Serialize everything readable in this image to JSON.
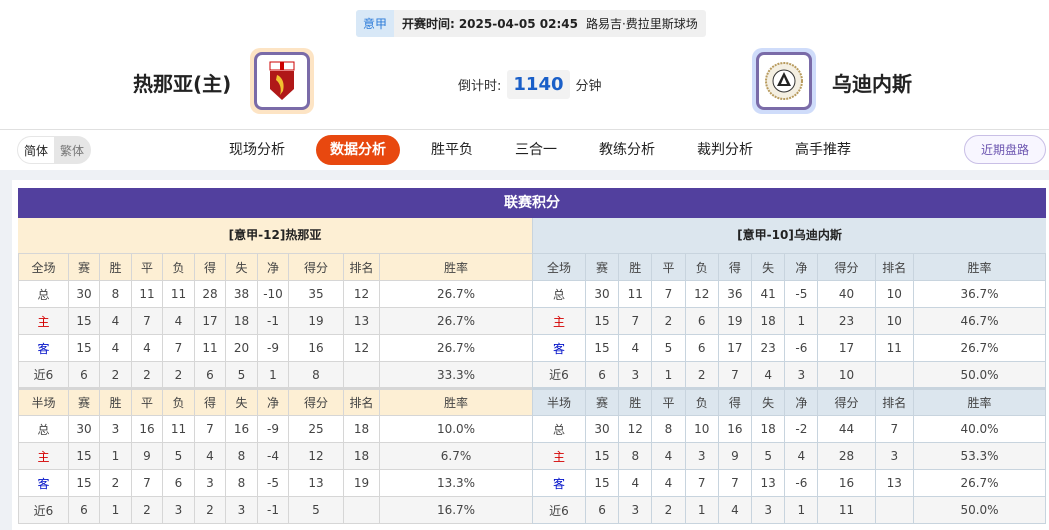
{
  "match": {
    "league": "意甲",
    "time_label": "开赛时间:",
    "time": "2025-04-05 02:45",
    "venue": "路易吉·费拉里斯球场"
  },
  "home": {
    "name": "热那亚(主)",
    "logo": "genoa-crest"
  },
  "away": {
    "name": "乌迪内斯",
    "logo": "udinese-crest"
  },
  "countdown": {
    "label": "倒计时:",
    "value": "1140",
    "unit": "分钟"
  },
  "nav": {
    "lang": [
      "简体",
      "繁体"
    ],
    "tabs": [
      "现场分析",
      "数据分析",
      "胜平负",
      "三合一",
      "教练分析",
      "裁判分析",
      "高手推荐"
    ],
    "active": "数据分析",
    "recent": "近期盘路"
  },
  "colors": {
    "accent": "#e8480f",
    "panel": "#52409e",
    "home_red": "#d40000",
    "away_blue": "#0010c8"
  },
  "standings": {
    "title": "联赛积分",
    "columns_full": [
      "全场",
      "赛",
      "胜",
      "平",
      "负",
      "得",
      "失",
      "净",
      "得分",
      "排名",
      "胜率"
    ],
    "columns_half": [
      "半场",
      "赛",
      "胜",
      "平",
      "负",
      "得",
      "失",
      "净",
      "得分",
      "排名",
      "胜率"
    ],
    "home": {
      "header": "[意甲-12]热那亚",
      "full": [
        [
          "总",
          "30",
          "8",
          "11",
          "11",
          "28",
          "38",
          "-10",
          "35",
          "12",
          "26.7%"
        ],
        [
          "主",
          "15",
          "4",
          "7",
          "4",
          "17",
          "18",
          "-1",
          "19",
          "13",
          "26.7%"
        ],
        [
          "客",
          "15",
          "4",
          "4",
          "7",
          "11",
          "20",
          "-9",
          "16",
          "12",
          "26.7%"
        ],
        [
          "近6",
          "6",
          "2",
          "2",
          "2",
          "6",
          "5",
          "1",
          "8",
          "",
          "33.3%"
        ]
      ],
      "half": [
        [
          "总",
          "30",
          "3",
          "16",
          "11",
          "7",
          "16",
          "-9",
          "25",
          "18",
          "10.0%"
        ],
        [
          "主",
          "15",
          "1",
          "9",
          "5",
          "4",
          "8",
          "-4",
          "12",
          "18",
          "6.7%"
        ],
        [
          "客",
          "15",
          "2",
          "7",
          "6",
          "3",
          "8",
          "-5",
          "13",
          "19",
          "13.3%"
        ],
        [
          "近6",
          "6",
          "1",
          "2",
          "3",
          "2",
          "3",
          "-1",
          "5",
          "",
          "16.7%"
        ]
      ]
    },
    "away": {
      "header": "[意甲-10]乌迪内斯",
      "full": [
        [
          "总",
          "30",
          "11",
          "7",
          "12",
          "36",
          "41",
          "-5",
          "40",
          "10",
          "36.7%"
        ],
        [
          "主",
          "15",
          "7",
          "2",
          "6",
          "19",
          "18",
          "1",
          "23",
          "10",
          "46.7%"
        ],
        [
          "客",
          "15",
          "4",
          "5",
          "6",
          "17",
          "23",
          "-6",
          "17",
          "11",
          "26.7%"
        ],
        [
          "近6",
          "6",
          "3",
          "1",
          "2",
          "7",
          "4",
          "3",
          "10",
          "",
          "50.0%"
        ]
      ],
      "half": [
        [
          "总",
          "30",
          "12",
          "8",
          "10",
          "16",
          "18",
          "-2",
          "44",
          "7",
          "40.0%"
        ],
        [
          "主",
          "15",
          "8",
          "4",
          "3",
          "9",
          "5",
          "4",
          "28",
          "3",
          "53.3%"
        ],
        [
          "客",
          "15",
          "4",
          "4",
          "7",
          "7",
          "13",
          "-6",
          "16",
          "13",
          "26.7%"
        ],
        [
          "近6",
          "6",
          "3",
          "2",
          "1",
          "4",
          "3",
          "1",
          "11",
          "",
          "50.0%"
        ]
      ]
    }
  }
}
